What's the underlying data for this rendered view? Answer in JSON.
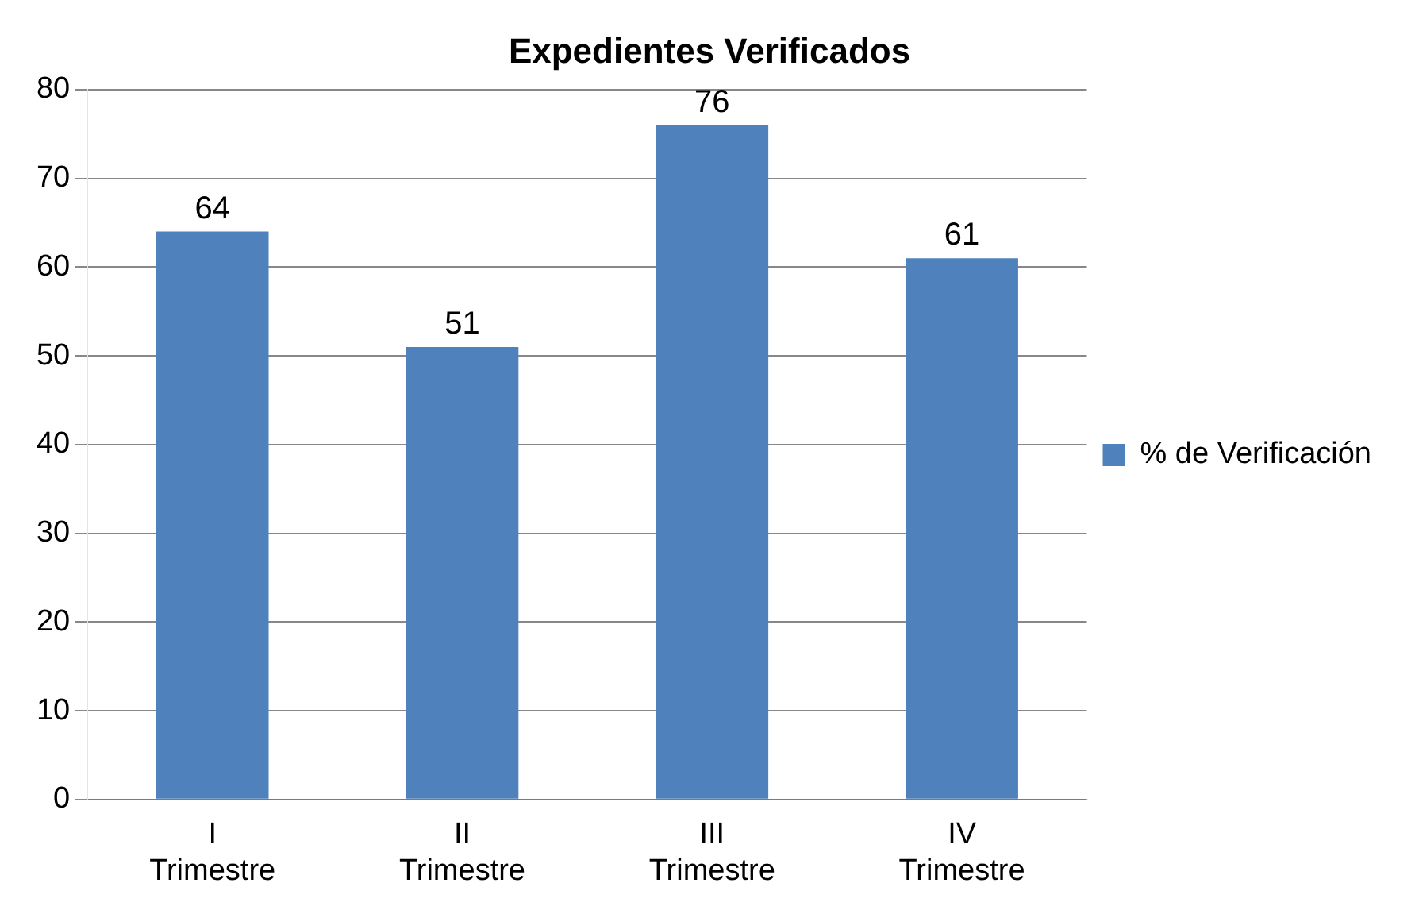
{
  "chart_data": {
    "type": "bar",
    "title": "Expedientes Verificados",
    "categories": [
      "I Trimestre",
      "II Trimestre",
      "III Trimestre",
      "IV Trimestre"
    ],
    "series": [
      {
        "name": "% de Verificación",
        "color": "#4f81bd",
        "values": [
          64,
          51,
          76,
          61
        ]
      }
    ],
    "ylim": [
      0,
      80
    ],
    "yticks": [
      0,
      10,
      20,
      30,
      40,
      50,
      60,
      70,
      80
    ],
    "grid": "y",
    "legend": "right",
    "data_labels": true
  }
}
